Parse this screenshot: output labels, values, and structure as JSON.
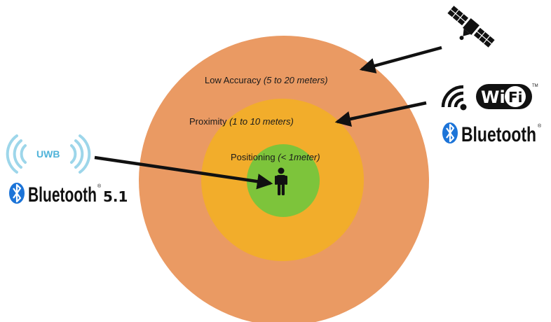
{
  "zones": [
    {
      "name": "Low Accuracy",
      "range": "(5 to 20 meters)",
      "color": "#ea9a63"
    },
    {
      "name": "Proximity",
      "range": "(1 to 10 meters)",
      "color": "#f2ad2b"
    },
    {
      "name": "Positioning",
      "range": "(< 1meter)",
      "color": "#7dc43b"
    }
  ],
  "technologies": {
    "satellite": {
      "icon": "satellite-icon"
    },
    "wifi": {
      "wordmark": "WiFi",
      "tm": "TM",
      "icon": "wifi-icon"
    },
    "bluetooth_right": {
      "wordmark": "Bluetooth",
      "mark": "®",
      "icon": "bluetooth-icon"
    },
    "uwb": {
      "label": "UWB",
      "icon": "uwb-icon"
    },
    "bluetooth_left": {
      "wordmark": "Bluetooth",
      "mark": "®",
      "version": "5.1",
      "icon": "bluetooth-icon"
    }
  },
  "person": {
    "icon": "person-icon"
  },
  "colors": {
    "arrow": "#111111",
    "wave": "#9dd6ea",
    "uwb_text": "#4fb3d9",
    "bluetooth_blue": "#1c74d8"
  }
}
